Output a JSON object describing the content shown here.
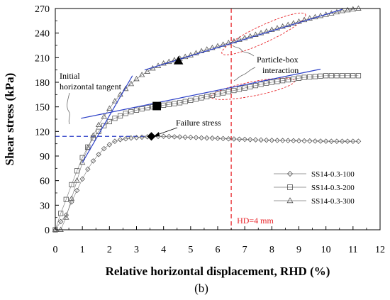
{
  "chart_data": {
    "type": "scatter",
    "xlabel": "Relative horizontal displacement, RHD (%)",
    "ylabel": "Shear stress (kPa)",
    "xlim": [
      0,
      12
    ],
    "ylim": [
      0,
      270
    ],
    "x_ticks": [
      0,
      1,
      2,
      3,
      4,
      5,
      6,
      7,
      8,
      9,
      10,
      11,
      12
    ],
    "y_ticks": [
      0,
      30,
      60,
      90,
      120,
      150,
      180,
      210,
      240,
      270
    ],
    "grid": false,
    "legend_position": "bottom-right",
    "panel_label": "(b)",
    "series": [
      {
        "name": "SS14-0.3-100",
        "marker": "diamond",
        "points": [
          [
            0,
            0
          ],
          [
            0.2,
            10
          ],
          [
            0.4,
            18
          ],
          [
            0.6,
            34
          ],
          [
            0.8,
            48
          ],
          [
            1.0,
            62
          ],
          [
            1.2,
            74
          ],
          [
            1.4,
            84
          ],
          [
            1.6,
            92
          ],
          [
            1.8,
            99
          ],
          [
            2.0,
            104
          ],
          [
            2.2,
            108
          ],
          [
            2.4,
            110
          ],
          [
            2.6,
            111
          ],
          [
            2.8,
            112
          ],
          [
            3.0,
            112.5
          ],
          [
            3.2,
            113
          ],
          [
            3.4,
            113.5
          ],
          [
            3.6,
            114
          ],
          [
            3.8,
            114
          ],
          [
            4.0,
            114
          ],
          [
            4.2,
            113.8
          ],
          [
            4.4,
            113.5
          ],
          [
            4.6,
            113.3
          ],
          [
            4.8,
            113
          ],
          [
            5.0,
            112.8
          ],
          [
            5.2,
            112.5
          ],
          [
            5.4,
            112.2
          ],
          [
            5.6,
            112
          ],
          [
            5.8,
            111.8
          ],
          [
            6.0,
            111.5
          ],
          [
            6.2,
            111.3
          ],
          [
            6.4,
            111
          ],
          [
            6.6,
            110.8
          ],
          [
            6.8,
            110.5
          ],
          [
            7.0,
            110.3
          ],
          [
            7.2,
            110
          ],
          [
            7.4,
            109.8
          ],
          [
            7.6,
            109.6
          ],
          [
            7.8,
            109.4
          ],
          [
            8.0,
            109.2
          ],
          [
            8.2,
            109
          ],
          [
            8.4,
            108.9
          ],
          [
            8.6,
            108.8
          ],
          [
            8.8,
            108.7
          ],
          [
            9.0,
            108.6
          ],
          [
            9.2,
            108.5
          ],
          [
            9.4,
            108.4
          ],
          [
            9.6,
            108.3
          ],
          [
            9.8,
            108.2
          ],
          [
            10.0,
            108.1
          ],
          [
            10.2,
            108
          ],
          [
            10.4,
            108
          ],
          [
            10.6,
            108
          ],
          [
            10.8,
            108
          ],
          [
            11.0,
            108
          ],
          [
            11.2,
            108
          ]
        ]
      },
      {
        "name": "SS14-0.3-200",
        "marker": "square",
        "points": [
          [
            0,
            0
          ],
          [
            0.2,
            20
          ],
          [
            0.4,
            37
          ],
          [
            0.6,
            55
          ],
          [
            0.8,
            72
          ],
          [
            1.0,
            88
          ],
          [
            1.2,
            101
          ],
          [
            1.4,
            112
          ],
          [
            1.6,
            120
          ],
          [
            1.8,
            127
          ],
          [
            2.0,
            132
          ],
          [
            2.2,
            136
          ],
          [
            2.4,
            139
          ],
          [
            2.6,
            142
          ],
          [
            2.8,
            144
          ],
          [
            3.0,
            146
          ],
          [
            3.2,
            147.5
          ],
          [
            3.4,
            149
          ],
          [
            3.6,
            150
          ],
          [
            3.8,
            151
          ],
          [
            4.0,
            152
          ],
          [
            4.2,
            153
          ],
          [
            4.4,
            154
          ],
          [
            4.6,
            155
          ],
          [
            4.8,
            156.5
          ],
          [
            5.0,
            158
          ],
          [
            5.2,
            159.5
          ],
          [
            5.4,
            161
          ],
          [
            5.6,
            162.5
          ],
          [
            5.8,
            164
          ],
          [
            6.0,
            165.5
          ],
          [
            6.2,
            167
          ],
          [
            6.4,
            168.5
          ],
          [
            6.6,
            170
          ],
          [
            6.8,
            171.5
          ],
          [
            7.0,
            173
          ],
          [
            7.2,
            174.5
          ],
          [
            7.4,
            176
          ],
          [
            7.6,
            177.5
          ],
          [
            7.8,
            179
          ],
          [
            8.0,
            180
          ],
          [
            8.2,
            181
          ],
          [
            8.4,
            182
          ],
          [
            8.6,
            183
          ],
          [
            8.8,
            184
          ],
          [
            9.0,
            185
          ],
          [
            9.2,
            186
          ],
          [
            9.4,
            186.5
          ],
          [
            9.6,
            187
          ],
          [
            9.8,
            187.5
          ],
          [
            10.0,
            188
          ],
          [
            10.2,
            188
          ],
          [
            10.4,
            188
          ],
          [
            10.6,
            188
          ],
          [
            10.8,
            188
          ],
          [
            11.0,
            188
          ],
          [
            11.2,
            188
          ]
        ]
      },
      {
        "name": "SS14-0.3-300",
        "marker": "triangle",
        "points": [
          [
            0,
            0
          ],
          [
            0.2,
            0
          ],
          [
            0.4,
            15
          ],
          [
            0.6,
            38
          ],
          [
            0.8,
            60
          ],
          [
            1.0,
            82
          ],
          [
            1.2,
            100
          ],
          [
            1.4,
            115
          ],
          [
            1.6,
            128
          ],
          [
            1.8,
            138
          ],
          [
            2.0,
            148
          ],
          [
            2.2,
            157
          ],
          [
            2.4,
            165
          ],
          [
            2.6,
            172
          ],
          [
            2.8,
            178
          ],
          [
            3.0,
            184
          ],
          [
            3.2,
            189
          ],
          [
            3.4,
            193
          ],
          [
            3.6,
            197
          ],
          [
            3.8,
            200
          ],
          [
            4.0,
            203
          ],
          [
            4.2,
            205
          ],
          [
            4.4,
            207
          ],
          [
            4.6,
            209
          ],
          [
            4.8,
            211
          ],
          [
            5.0,
            213
          ],
          [
            5.2,
            215.5
          ],
          [
            5.4,
            218
          ],
          [
            5.6,
            220
          ],
          [
            5.8,
            222
          ],
          [
            6.0,
            224
          ],
          [
            6.2,
            226
          ],
          [
            6.4,
            228
          ],
          [
            6.6,
            230
          ],
          [
            6.8,
            232
          ],
          [
            7.0,
            234
          ],
          [
            7.2,
            236
          ],
          [
            7.4,
            238
          ],
          [
            7.6,
            240
          ],
          [
            7.8,
            242
          ],
          [
            8.0,
            244
          ],
          [
            8.2,
            246
          ],
          [
            8.4,
            248
          ],
          [
            8.6,
            250
          ],
          [
            8.8,
            252
          ],
          [
            9.0,
            254
          ],
          [
            9.2,
            256
          ],
          [
            9.4,
            258
          ],
          [
            9.6,
            259.5
          ],
          [
            9.8,
            261
          ],
          [
            10.0,
            262.5
          ],
          [
            10.2,
            264
          ],
          [
            10.4,
            265.5
          ],
          [
            10.6,
            267
          ],
          [
            10.8,
            268
          ],
          [
            11.0,
            269
          ],
          [
            11.2,
            270
          ]
        ]
      }
    ],
    "highlight_markers": [
      {
        "marker": "filled-diamond",
        "x": 3.55,
        "y": 114
      },
      {
        "marker": "filled-square",
        "x": 3.75,
        "y": 151
      },
      {
        "marker": "filled-triangle",
        "x": 4.55,
        "y": 206
      }
    ],
    "reference_lines": [
      {
        "orientation": "vertical",
        "x": 6.5,
        "color": "#e8262b",
        "style": "dashed",
        "label": "HD=4 mm"
      },
      {
        "orientation": "horizontal",
        "y": 114,
        "x_start": 0,
        "x_end": 3.55,
        "color": "#2b3fc7",
        "style": "dashed"
      }
    ],
    "fit_lines": [
      {
        "from": [
          1.0,
          82
        ],
        "to": [
          2.85,
          188
        ],
        "color": "#2b3fc7"
      },
      {
        "from": [
          0.95,
          136
        ],
        "to": [
          9.8,
          196
        ],
        "color": "#2b3fc7"
      },
      {
        "from": [
          3.3,
          195
        ],
        "to": [
          10.6,
          269
        ],
        "color": "#2b3fc7"
      }
    ],
    "annotations": {
      "initial_tangent": [
        "Initial",
        "horizontal tangent"
      ],
      "failure_stress": "Failure stress",
      "particle_box": [
        "Particle-box",
        "interaction"
      ]
    },
    "colors": {
      "axis": "#000000",
      "series_marker": "#555555",
      "fit_line": "#2b3fc7",
      "ref_line": "#e8262b",
      "ellipse": "#e8262b"
    }
  }
}
